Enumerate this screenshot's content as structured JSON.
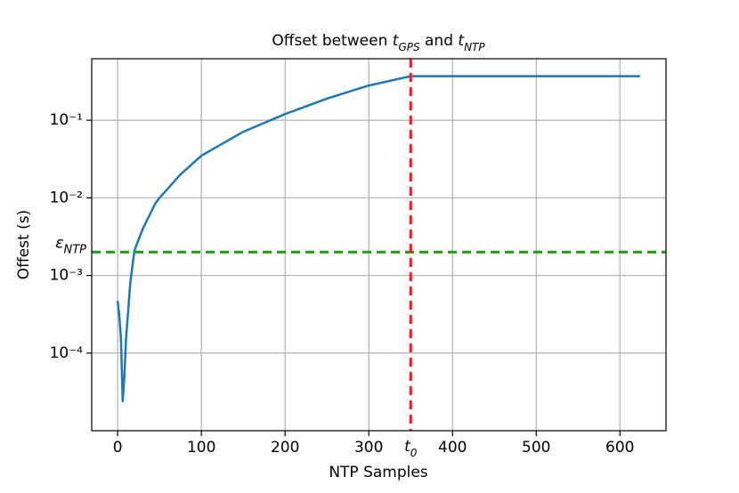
{
  "chart_data": {
    "type": "line",
    "title": [
      {
        "text": "Offset between "
      },
      {
        "text": "t",
        "italic": true
      },
      {
        "text": "GPS",
        "italic": true,
        "sub": true
      },
      {
        "text": " and "
      },
      {
        "text": "t",
        "italic": true
      },
      {
        "text": "NTP",
        "italic": true,
        "sub": true
      }
    ],
    "xlabel": "NTP Samples",
    "ylabel": "Offest (s)",
    "x": [
      0,
      2,
      4,
      6,
      8,
      10,
      15,
      20,
      30,
      45,
      50,
      75,
      100,
      150,
      200,
      250,
      300,
      350,
      400,
      500,
      624
    ],
    "series": [
      {
        "color": "#1f77b4",
        "values": [
          0.00047,
          0.0003,
          0.00015,
          2.4e-05,
          5e-05,
          0.00015,
          0.0008,
          0.0021,
          0.004,
          0.0085,
          0.01,
          0.02,
          0.035,
          0.071,
          0.12,
          0.19,
          0.28,
          0.37,
          0.37,
          0.37,
          0.37
        ]
      }
    ],
    "xlim": [
      -31,
      655
    ],
    "xticks": [
      0,
      100,
      200,
      300,
      400,
      500,
      600
    ],
    "ylim": [
      1e-05,
      0.62
    ],
    "log_y": true,
    "yticks": [
      {
        "value": 0.0001,
        "label": "10⁻⁴"
      },
      {
        "value": 0.001,
        "label": "10⁻³"
      },
      {
        "value": 0.01,
        "label": "10⁻²"
      },
      {
        "value": 0.1,
        "label": "10⁻¹"
      }
    ],
    "grid": true,
    "hline": {
      "value": 0.002,
      "color": "#1a9a1a",
      "label": "ε",
      "sub": "NTP"
    },
    "vline": {
      "value": 350,
      "color": "#ff1a1a",
      "label": "t",
      "sub": "0"
    }
  }
}
